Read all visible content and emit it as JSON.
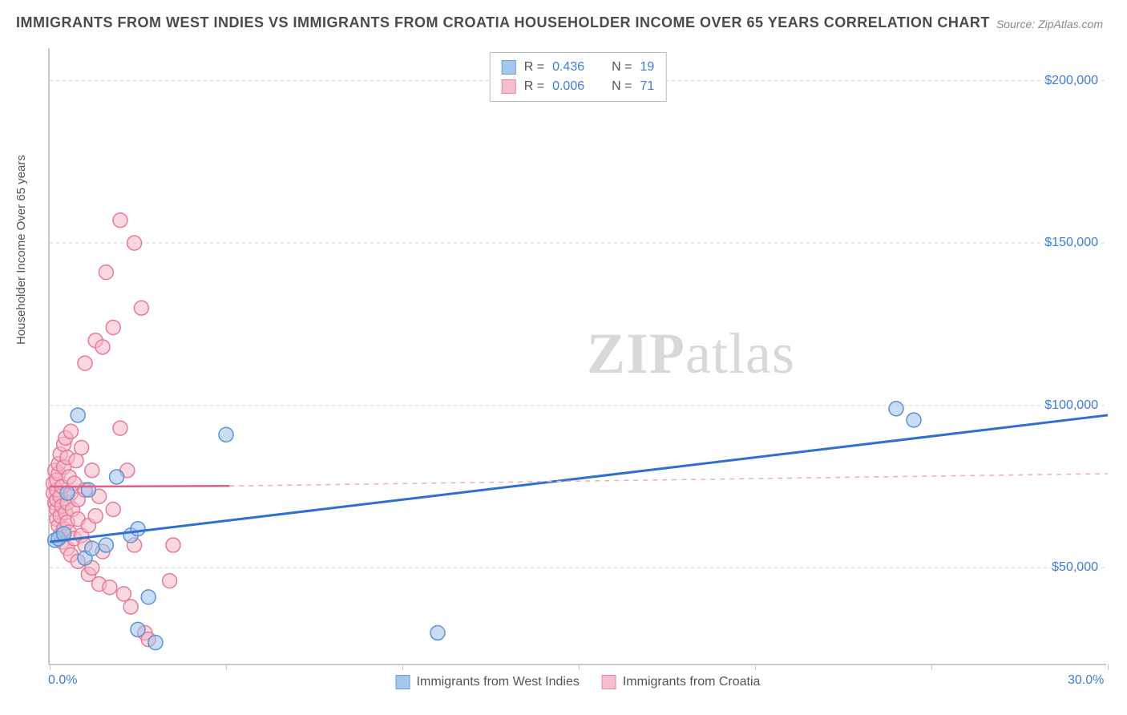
{
  "title": "IMMIGRANTS FROM WEST INDIES VS IMMIGRANTS FROM CROATIA HOUSEHOLDER INCOME OVER 65 YEARS CORRELATION CHART",
  "source": "Source: ZipAtlas.com",
  "y_axis_label": "Householder Income Over 65 years",
  "watermark": {
    "bold": "ZIP",
    "rest": "atlas"
  },
  "chart": {
    "type": "scatter",
    "x_domain": [
      0,
      30
    ],
    "y_domain": [
      20000,
      210000
    ],
    "y_ticks": [
      50000,
      100000,
      150000,
      200000
    ],
    "y_tick_labels": [
      "$50,000",
      "$100,000",
      "$150,000",
      "$200,000"
    ],
    "x_tick_positions": [
      0,
      5,
      10,
      15,
      20,
      25,
      30
    ],
    "x_tick_labels": {
      "0": "0.0%",
      "30": "30.0%"
    },
    "grid_color": "#d8d8d8",
    "background": "#ffffff"
  },
  "series": {
    "west_indies": {
      "label": "Immigrants from West Indies",
      "fill": "#9cc1ec",
      "stroke": "#5a93d6",
      "fill_opacity": 0.55,
      "marker_radius": 9,
      "R": "0.436",
      "N": "19",
      "regression": {
        "x1": 0,
        "y1": 58000,
        "x2": 30,
        "y2": 97000,
        "color": "#2f6fd0",
        "width": 3,
        "dash": "none"
      },
      "points": [
        [
          0.15,
          58500
        ],
        [
          0.25,
          59000
        ],
        [
          0.4,
          60500
        ],
        [
          0.5,
          73000
        ],
        [
          0.8,
          97000
        ],
        [
          1.0,
          53000
        ],
        [
          1.1,
          74000
        ],
        [
          1.2,
          56000
        ],
        [
          1.6,
          57000
        ],
        [
          1.9,
          78000
        ],
        [
          2.3,
          60000
        ],
        [
          2.5,
          62000
        ],
        [
          2.5,
          31000
        ],
        [
          2.8,
          41000
        ],
        [
          3.0,
          27000
        ],
        [
          5.0,
          91000
        ],
        [
          11.0,
          30000
        ],
        [
          24.0,
          99000
        ],
        [
          24.5,
          95500
        ]
      ]
    },
    "croatia": {
      "label": "Immigrants from Croatia",
      "fill": "#f5b8c7",
      "stroke": "#e67a98",
      "fill_opacity": 0.55,
      "marker_radius": 9,
      "R": "0.006",
      "N": "71",
      "regression_solid": {
        "x1": 0,
        "y1": 75000,
        "x2": 5.1,
        "y2": 75200,
        "color": "#e85b84",
        "width": 2.5
      },
      "regression_dashed": {
        "x1": 5.1,
        "y1": 75200,
        "x2": 30,
        "y2": 79000,
        "color": "#f1a9bd",
        "width": 1.5,
        "dash": "6,6"
      },
      "points": [
        [
          0.1,
          73000
        ],
        [
          0.1,
          76000
        ],
        [
          0.15,
          70000
        ],
        [
          0.15,
          80000
        ],
        [
          0.2,
          65000
        ],
        [
          0.2,
          68000
        ],
        [
          0.2,
          71000
        ],
        [
          0.2,
          74000
        ],
        [
          0.2,
          77000
        ],
        [
          0.25,
          63000
        ],
        [
          0.25,
          79000
        ],
        [
          0.25,
          82000
        ],
        [
          0.3,
          60000
        ],
        [
          0.3,
          66000
        ],
        [
          0.3,
          72000
        ],
        [
          0.3,
          85000
        ],
        [
          0.35,
          58000
        ],
        [
          0.35,
          69000
        ],
        [
          0.35,
          75000
        ],
        [
          0.4,
          62000
        ],
        [
          0.4,
          81000
        ],
        [
          0.4,
          88000
        ],
        [
          0.45,
          67000
        ],
        [
          0.45,
          90000
        ],
        [
          0.5,
          56000
        ],
        [
          0.5,
          64000
        ],
        [
          0.5,
          70000
        ],
        [
          0.5,
          84000
        ],
        [
          0.55,
          61000
        ],
        [
          0.55,
          78000
        ],
        [
          0.6,
          54000
        ],
        [
          0.6,
          73000
        ],
        [
          0.6,
          92000
        ],
        [
          0.65,
          68000
        ],
        [
          0.7,
          59000
        ],
        [
          0.7,
          76000
        ],
        [
          0.75,
          83000
        ],
        [
          0.8,
          52000
        ],
        [
          0.8,
          65000
        ],
        [
          0.8,
          71000
        ],
        [
          0.9,
          60000
        ],
        [
          0.9,
          87000
        ],
        [
          1.0,
          57000
        ],
        [
          1.0,
          74000
        ],
        [
          1.0,
          113000
        ],
        [
          1.1,
          48000
        ],
        [
          1.1,
          63000
        ],
        [
          1.2,
          50000
        ],
        [
          1.2,
          80000
        ],
        [
          1.3,
          66000
        ],
        [
          1.3,
          120000
        ],
        [
          1.4,
          45000
        ],
        [
          1.4,
          72000
        ],
        [
          1.5,
          55000
        ],
        [
          1.5,
          118000
        ],
        [
          1.6,
          141000
        ],
        [
          1.7,
          44000
        ],
        [
          1.8,
          68000
        ],
        [
          1.8,
          124000
        ],
        [
          2.0,
          93000
        ],
        [
          2.0,
          157000
        ],
        [
          2.1,
          42000
        ],
        [
          2.2,
          80000
        ],
        [
          2.3,
          38000
        ],
        [
          2.4,
          57000
        ],
        [
          2.4,
          150000
        ],
        [
          2.6,
          130000
        ],
        [
          2.7,
          30000
        ],
        [
          2.8,
          28000
        ],
        [
          3.4,
          46000
        ],
        [
          3.5,
          57000
        ]
      ]
    }
  },
  "stat_legend_rows": [
    {
      "swatch": "west_indies",
      "R": "0.436",
      "N": "19"
    },
    {
      "swatch": "croatia",
      "R": "0.006",
      "N": "71"
    }
  ],
  "bottom_legend": [
    {
      "swatch": "west_indies",
      "label": "Immigrants from West Indies"
    },
    {
      "swatch": "croatia",
      "label": "Immigrants from Croatia"
    }
  ],
  "labels": {
    "R_prefix": "R  = ",
    "N_prefix": "N  = "
  }
}
